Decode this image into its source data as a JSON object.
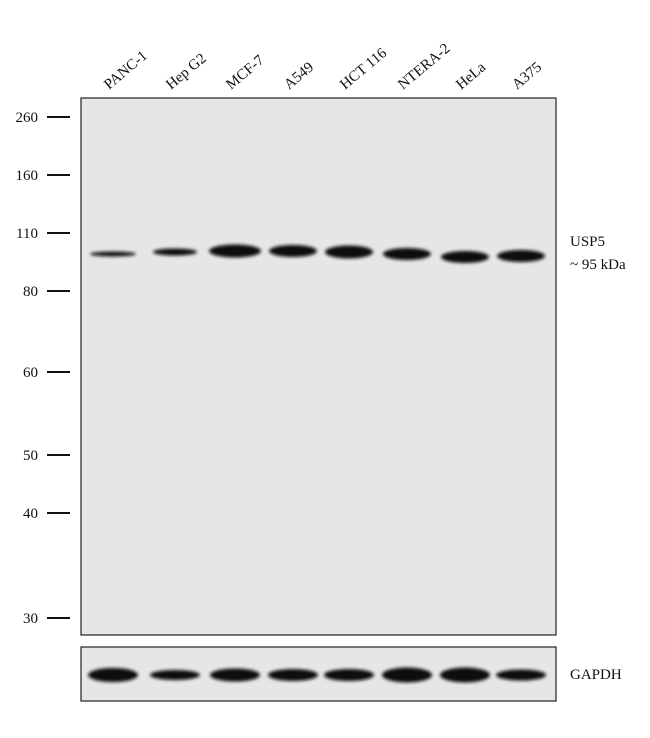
{
  "lanes": [
    "PANC-1",
    "Hep G2",
    "MCF-7",
    "A549",
    "HCT 116",
    "NTERA-2",
    "HeLa",
    "A375"
  ],
  "markers": [
    "260",
    "160",
    "110",
    "80",
    "60",
    "50",
    "40",
    "30"
  ],
  "target": {
    "name": "USP5",
    "size": "~ 95 kDa"
  },
  "loading_control": "GAPDH"
}
